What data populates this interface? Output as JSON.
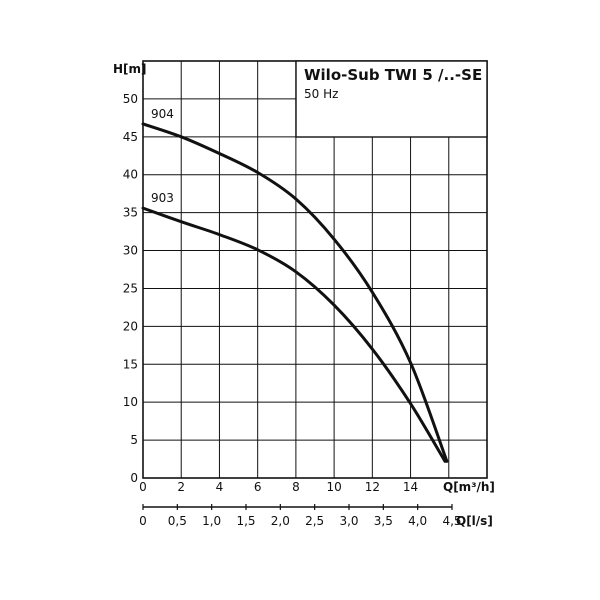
{
  "chart_data": {
    "type": "line",
    "title": "Wilo-Sub TWI 5 /..-SE",
    "subtitle": "50 Hz",
    "ylabel": "H[m]",
    "xlabel": "Q[m³/h]",
    "x2label": "Q[l/s]",
    "ylim": [
      0,
      55
    ],
    "xlim": [
      0,
      18
    ],
    "x2lim": [
      0,
      5
    ],
    "grid": true,
    "y_ticks": [
      "0",
      "5",
      "10",
      "15",
      "20",
      "25",
      "30",
      "35",
      "40",
      "45",
      "50"
    ],
    "x_ticks": [
      "0",
      "2",
      "4",
      "6",
      "8",
      "10",
      "12",
      "14"
    ],
    "x2_ticks": [
      "0",
      "0,5",
      "1,0",
      "1,5",
      "2,0",
      "2,5",
      "3,0",
      "3,5",
      "4,0",
      "4,5"
    ],
    "series": [
      {
        "name": "904",
        "x": [
          0,
          2,
          4,
          6,
          8,
          10,
          12,
          14,
          15.9
        ],
        "values": [
          46.7,
          45.0,
          42.8,
          40.3,
          36.8,
          31.5,
          24.5,
          15.2,
          2.2
        ]
      },
      {
        "name": "903",
        "x": [
          0,
          2,
          4,
          6,
          8,
          10,
          12,
          14,
          15.8
        ],
        "values": [
          35.6,
          33.8,
          32.1,
          30.1,
          27.2,
          22.8,
          17.0,
          9.8,
          2.2
        ]
      }
    ],
    "colors": {
      "line": "#111111",
      "grid": "#111111"
    }
  }
}
